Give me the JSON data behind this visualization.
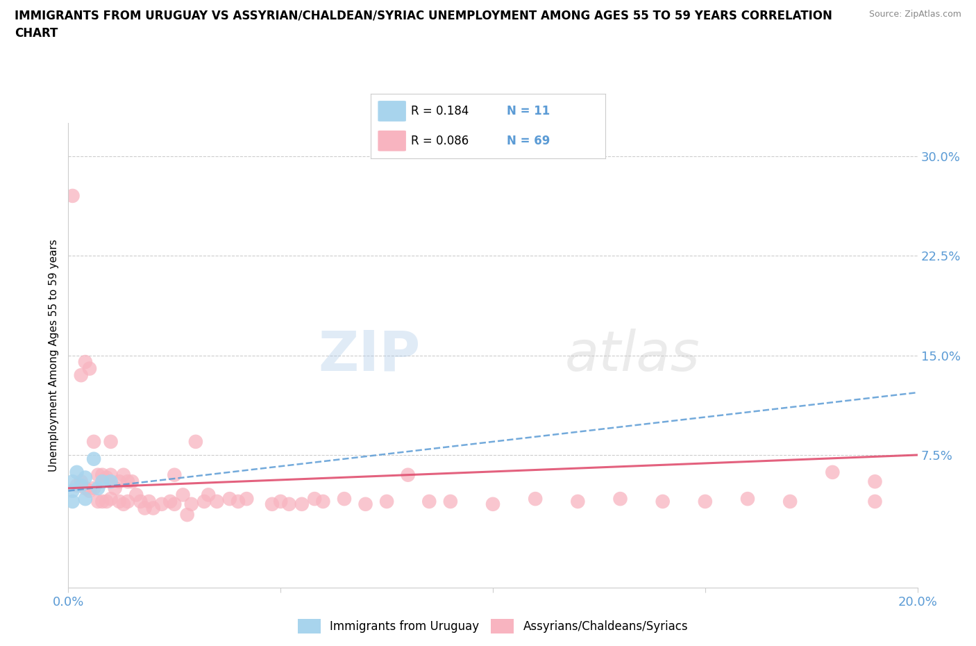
{
  "title_line1": "IMMIGRANTS FROM URUGUAY VS ASSYRIAN/CHALDEAN/SYRIAC UNEMPLOYMENT AMONG AGES 55 TO 59 YEARS CORRELATION",
  "title_line2": "CHART",
  "source": "Source: ZipAtlas.com",
  "ylabel": "Unemployment Among Ages 55 to 59 years",
  "xlim": [
    0.0,
    0.2
  ],
  "ylim": [
    -0.025,
    0.325
  ],
  "yticks": [
    0.075,
    0.15,
    0.225,
    0.3
  ],
  "ytick_labels": [
    "7.5%",
    "15.0%",
    "22.5%",
    "30.0%"
  ],
  "xticks": [
    0.0,
    0.05,
    0.1,
    0.15,
    0.2
  ],
  "xtick_labels": [
    "0.0%",
    "",
    "",
    "",
    "20.0%"
  ],
  "legend_R_blue": "0.184",
  "legend_N_blue": "11",
  "legend_R_pink": "0.086",
  "legend_N_pink": "69",
  "legend_label_blue": "Immigrants from Uruguay",
  "legend_label_pink": "Assyrians/Chaldeans/Syriacs",
  "blue_color": "#a8d4ed",
  "pink_color": "#f8b4c0",
  "blue_line_color": "#5B9BD5",
  "pink_line_color": "#e05070",
  "watermark": "ZIPAtlas",
  "blue_trend_x": [
    0.0,
    0.2
  ],
  "blue_trend_y": [
    0.048,
    0.122
  ],
  "pink_trend_x": [
    0.0,
    0.2
  ],
  "pink_trend_y": [
    0.05,
    0.075
  ],
  "blue_points_x": [
    0.001,
    0.001,
    0.001,
    0.002,
    0.003,
    0.004,
    0.004,
    0.006,
    0.007,
    0.008,
    0.01
  ],
  "blue_points_y": [
    0.055,
    0.048,
    0.04,
    0.062,
    0.052,
    0.058,
    0.042,
    0.072,
    0.05,
    0.055,
    0.055
  ],
  "pink_points_x": [
    0.001,
    0.002,
    0.003,
    0.003,
    0.004,
    0.004,
    0.005,
    0.005,
    0.006,
    0.006,
    0.007,
    0.007,
    0.008,
    0.008,
    0.009,
    0.009,
    0.01,
    0.01,
    0.01,
    0.011,
    0.012,
    0.012,
    0.013,
    0.013,
    0.014,
    0.014,
    0.015,
    0.016,
    0.017,
    0.018,
    0.019,
    0.02,
    0.022,
    0.024,
    0.025,
    0.025,
    0.027,
    0.028,
    0.029,
    0.03,
    0.032,
    0.033,
    0.035,
    0.038,
    0.04,
    0.042,
    0.048,
    0.05,
    0.052,
    0.055,
    0.058,
    0.06,
    0.065,
    0.07,
    0.075,
    0.08,
    0.085,
    0.09,
    0.1,
    0.11,
    0.12,
    0.13,
    0.14,
    0.15,
    0.16,
    0.17,
    0.18,
    0.19,
    0.19
  ],
  "pink_points_y": [
    0.27,
    0.052,
    0.135,
    0.055,
    0.145,
    0.05,
    0.14,
    0.048,
    0.085,
    0.05,
    0.06,
    0.04,
    0.06,
    0.04,
    0.058,
    0.04,
    0.085,
    0.06,
    0.042,
    0.05,
    0.055,
    0.04,
    0.06,
    0.038,
    0.055,
    0.04,
    0.055,
    0.045,
    0.04,
    0.035,
    0.04,
    0.035,
    0.038,
    0.04,
    0.06,
    0.038,
    0.045,
    0.03,
    0.038,
    0.085,
    0.04,
    0.045,
    0.04,
    0.042,
    0.04,
    0.042,
    0.038,
    0.04,
    0.038,
    0.038,
    0.042,
    0.04,
    0.042,
    0.038,
    0.04,
    0.06,
    0.04,
    0.04,
    0.038,
    0.042,
    0.04,
    0.042,
    0.04,
    0.04,
    0.042,
    0.04,
    0.062,
    0.055,
    0.04
  ]
}
